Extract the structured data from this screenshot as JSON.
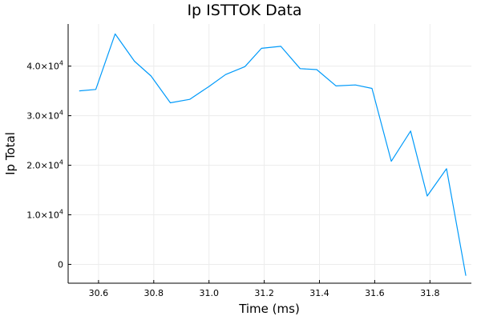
{
  "chart_data": {
    "type": "line",
    "title": "Ip ISTTOK Data",
    "xlabel": "Time (ms)",
    "ylabel": "Ip Total",
    "xlim": [
      30.49,
      31.95
    ],
    "ylim": [
      -3800,
      48500
    ],
    "grid": true,
    "legend": "none",
    "x_ticks": [
      {
        "value": 30.6,
        "label": "30.6"
      },
      {
        "value": 30.8,
        "label": "30.8"
      },
      {
        "value": 31.0,
        "label": "31.0"
      },
      {
        "value": 31.2,
        "label": "31.2"
      },
      {
        "value": 31.4,
        "label": "31.4"
      },
      {
        "value": 31.6,
        "label": "31.6"
      },
      {
        "value": 31.8,
        "label": "31.8"
      }
    ],
    "y_ticks": [
      {
        "value": 0,
        "mantissa": "0",
        "exponent": ""
      },
      {
        "value": 10000,
        "mantissa": "1.0×10",
        "exponent": "4"
      },
      {
        "value": 20000,
        "mantissa": "2.0×10",
        "exponent": "4"
      },
      {
        "value": 30000,
        "mantissa": "3.0×10",
        "exponent": "4"
      },
      {
        "value": 40000,
        "mantissa": "4.0×10",
        "exponent": "4"
      }
    ],
    "series": [
      {
        "color": "#009AFA",
        "x": [
          30.53,
          30.59,
          30.66,
          30.73,
          30.79,
          30.86,
          30.93,
          31.0,
          31.06,
          31.13,
          31.19,
          31.26,
          31.33,
          31.39,
          31.46,
          31.53,
          31.59,
          31.66,
          31.73,
          31.79,
          31.86,
          31.93
        ],
        "y": [
          35000,
          35300,
          46500,
          41000,
          38000,
          32600,
          33300,
          35900,
          38300,
          39900,
          43600,
          44000,
          39500,
          39300,
          36000,
          36200,
          35500,
          20800,
          26900,
          13800,
          19300,
          -2300
        ]
      }
    ]
  }
}
